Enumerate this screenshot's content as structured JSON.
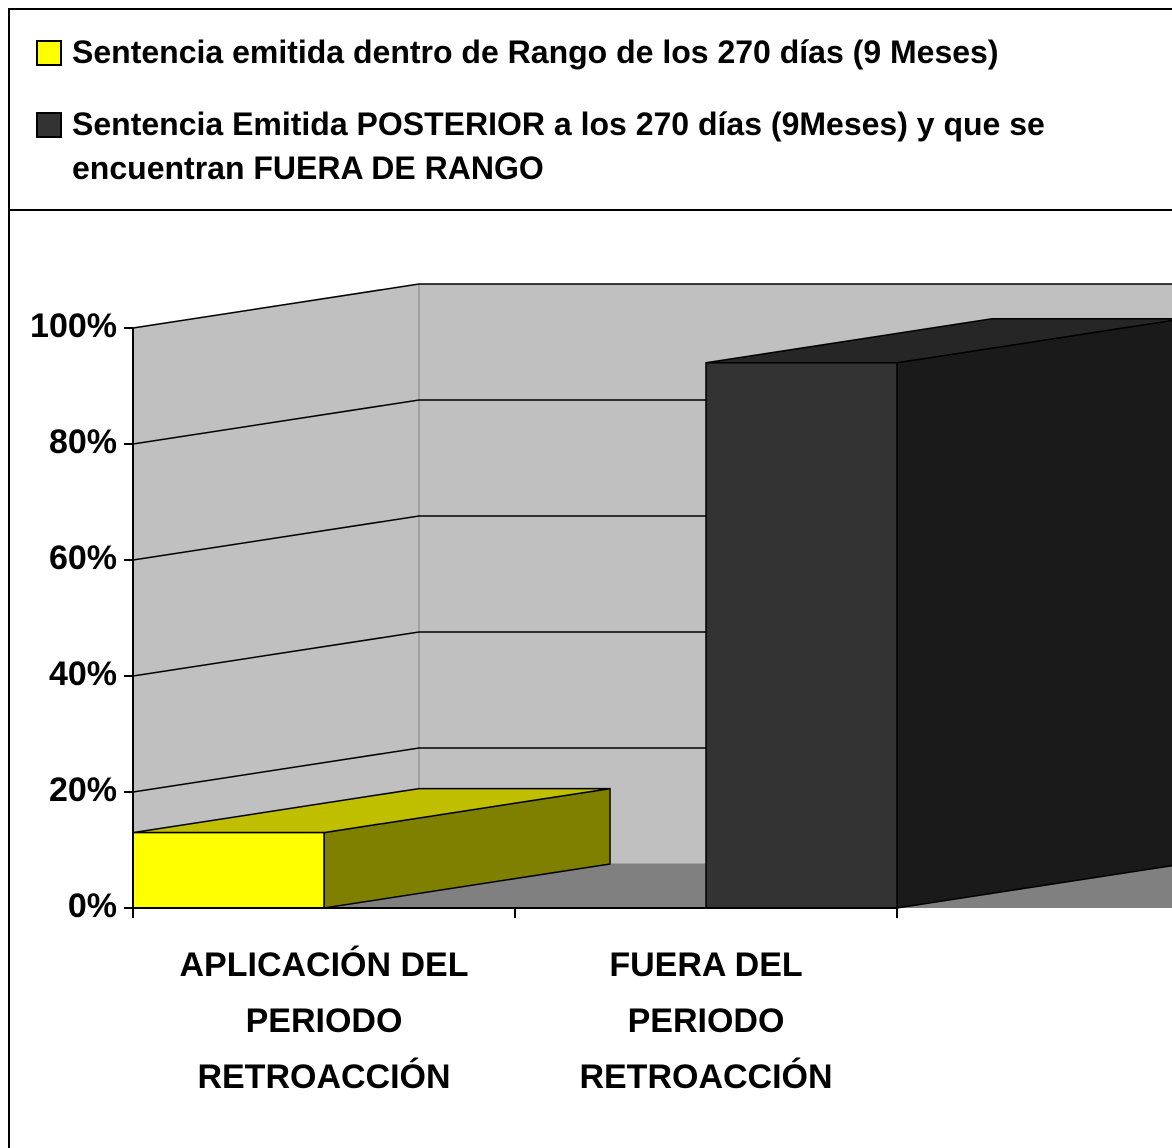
{
  "chart_data": {
    "type": "bar3d",
    "categories": [
      [
        "APLICACIÓN DEL",
        "PERIODO",
        "RETROACCIÓN"
      ],
      [
        "FUERA DEL",
        "PERIODO",
        "RETROACCIÓN"
      ]
    ],
    "series": [
      {
        "name": "Sentencia emitida dentro de Rango de los 270 días (9 Meses)",
        "color": "#ffff00",
        "values": [
          13,
          null
        ]
      },
      {
        "name": "Sentencia Emitida POSTERIOR  a los 270 días (9Meses) y que se encuentran FUERA DE RANGO",
        "color": "#333333",
        "values": [
          null,
          94
        ]
      }
    ],
    "ylim": [
      0,
      100
    ],
    "yticks": [
      {
        "value": 0,
        "label": "0%"
      },
      {
        "value": 20,
        "label": "20%"
      },
      {
        "value": 40,
        "label": "40%"
      },
      {
        "value": 60,
        "label": "60%"
      },
      {
        "value": 80,
        "label": "80%"
      },
      {
        "value": 100,
        "label": "100%"
      }
    ],
    "grid": true,
    "legend": "top"
  }
}
